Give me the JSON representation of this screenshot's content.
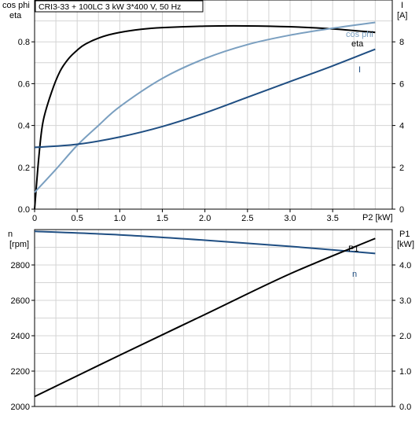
{
  "chart_data": [
    {
      "type": "line",
      "title": "CRI3-33 + 100LC   3 kW   3*400 V, 50 Hz",
      "xlabel": "P2 [kW]",
      "x_ticks": [
        "0",
        "0.5",
        "1.0",
        "1.5",
        "2.0",
        "2.5",
        "3.0",
        "3.5"
      ],
      "xlim": [
        0,
        4.2
      ],
      "ylabel_left": [
        "cos phi",
        "eta"
      ],
      "ylim_left": [
        0,
        1.0
      ],
      "y_ticks_left": [
        "0.0",
        "0.2",
        "0.4",
        "0.6",
        "0.8"
      ],
      "ylabel_right": [
        "I",
        "[A]"
      ],
      "ylim_right": [
        0,
        10
      ],
      "y_ticks_right": [
        "0",
        "2",
        "4",
        "6",
        "8"
      ],
      "grid": true,
      "series": [
        {
          "name": "eta",
          "axis": "left",
          "color": "#000000",
          "x": [
            0,
            0.05,
            0.1,
            0.2,
            0.3,
            0.4,
            0.5,
            0.6,
            0.8,
            1.0,
            1.25,
            1.5,
            2.0,
            2.5,
            3.0,
            3.5,
            4.0
          ],
          "y": [
            0,
            0.25,
            0.42,
            0.56,
            0.66,
            0.72,
            0.76,
            0.79,
            0.825,
            0.845,
            0.86,
            0.868,
            0.875,
            0.876,
            0.872,
            0.862,
            0.845
          ]
        },
        {
          "name": "cos phi",
          "axis": "left",
          "color": "#7a9fc0",
          "x": [
            0,
            0.25,
            0.5,
            0.75,
            1.0,
            1.5,
            2.0,
            2.5,
            3.0,
            3.5,
            4.0
          ],
          "y": [
            0.08,
            0.19,
            0.305,
            0.4,
            0.49,
            0.625,
            0.72,
            0.787,
            0.832,
            0.865,
            0.893
          ]
        },
        {
          "name": "I",
          "axis": "right",
          "color": "#1f4e82",
          "x": [
            0,
            0.5,
            1.0,
            1.5,
            2.0,
            2.5,
            3.0,
            3.5,
            4.0
          ],
          "y": [
            2.95,
            3.1,
            3.45,
            3.95,
            4.6,
            5.35,
            6.1,
            6.85,
            7.65
          ]
        }
      ]
    },
    {
      "type": "line",
      "xlim": [
        0,
        4.2
      ],
      "ylabel_left": [
        "n",
        "[rpm]"
      ],
      "ylim_left": [
        2000,
        3000
      ],
      "y_ticks_left": [
        "2000",
        "2200",
        "2400",
        "2600",
        "2800"
      ],
      "ylabel_right": [
        "P1",
        "[kW]"
      ],
      "ylim_right": [
        0,
        5
      ],
      "y_ticks_right": [
        "0.0",
        "1.0",
        "2.0",
        "3.0",
        "4.0"
      ],
      "grid": true,
      "series": [
        {
          "name": "n",
          "axis": "left",
          "color": "#1f4e82",
          "x": [
            0,
            1.0,
            2.0,
            3.0,
            4.0
          ],
          "y": [
            2990,
            2970,
            2940,
            2905,
            2865
          ]
        },
        {
          "name": "P1",
          "axis": "right",
          "color": "#000000",
          "x": [
            0,
            1.0,
            2.0,
            3.0,
            4.0
          ],
          "y": [
            0.28,
            1.45,
            2.6,
            3.75,
            4.75
          ]
        }
      ]
    }
  ]
}
